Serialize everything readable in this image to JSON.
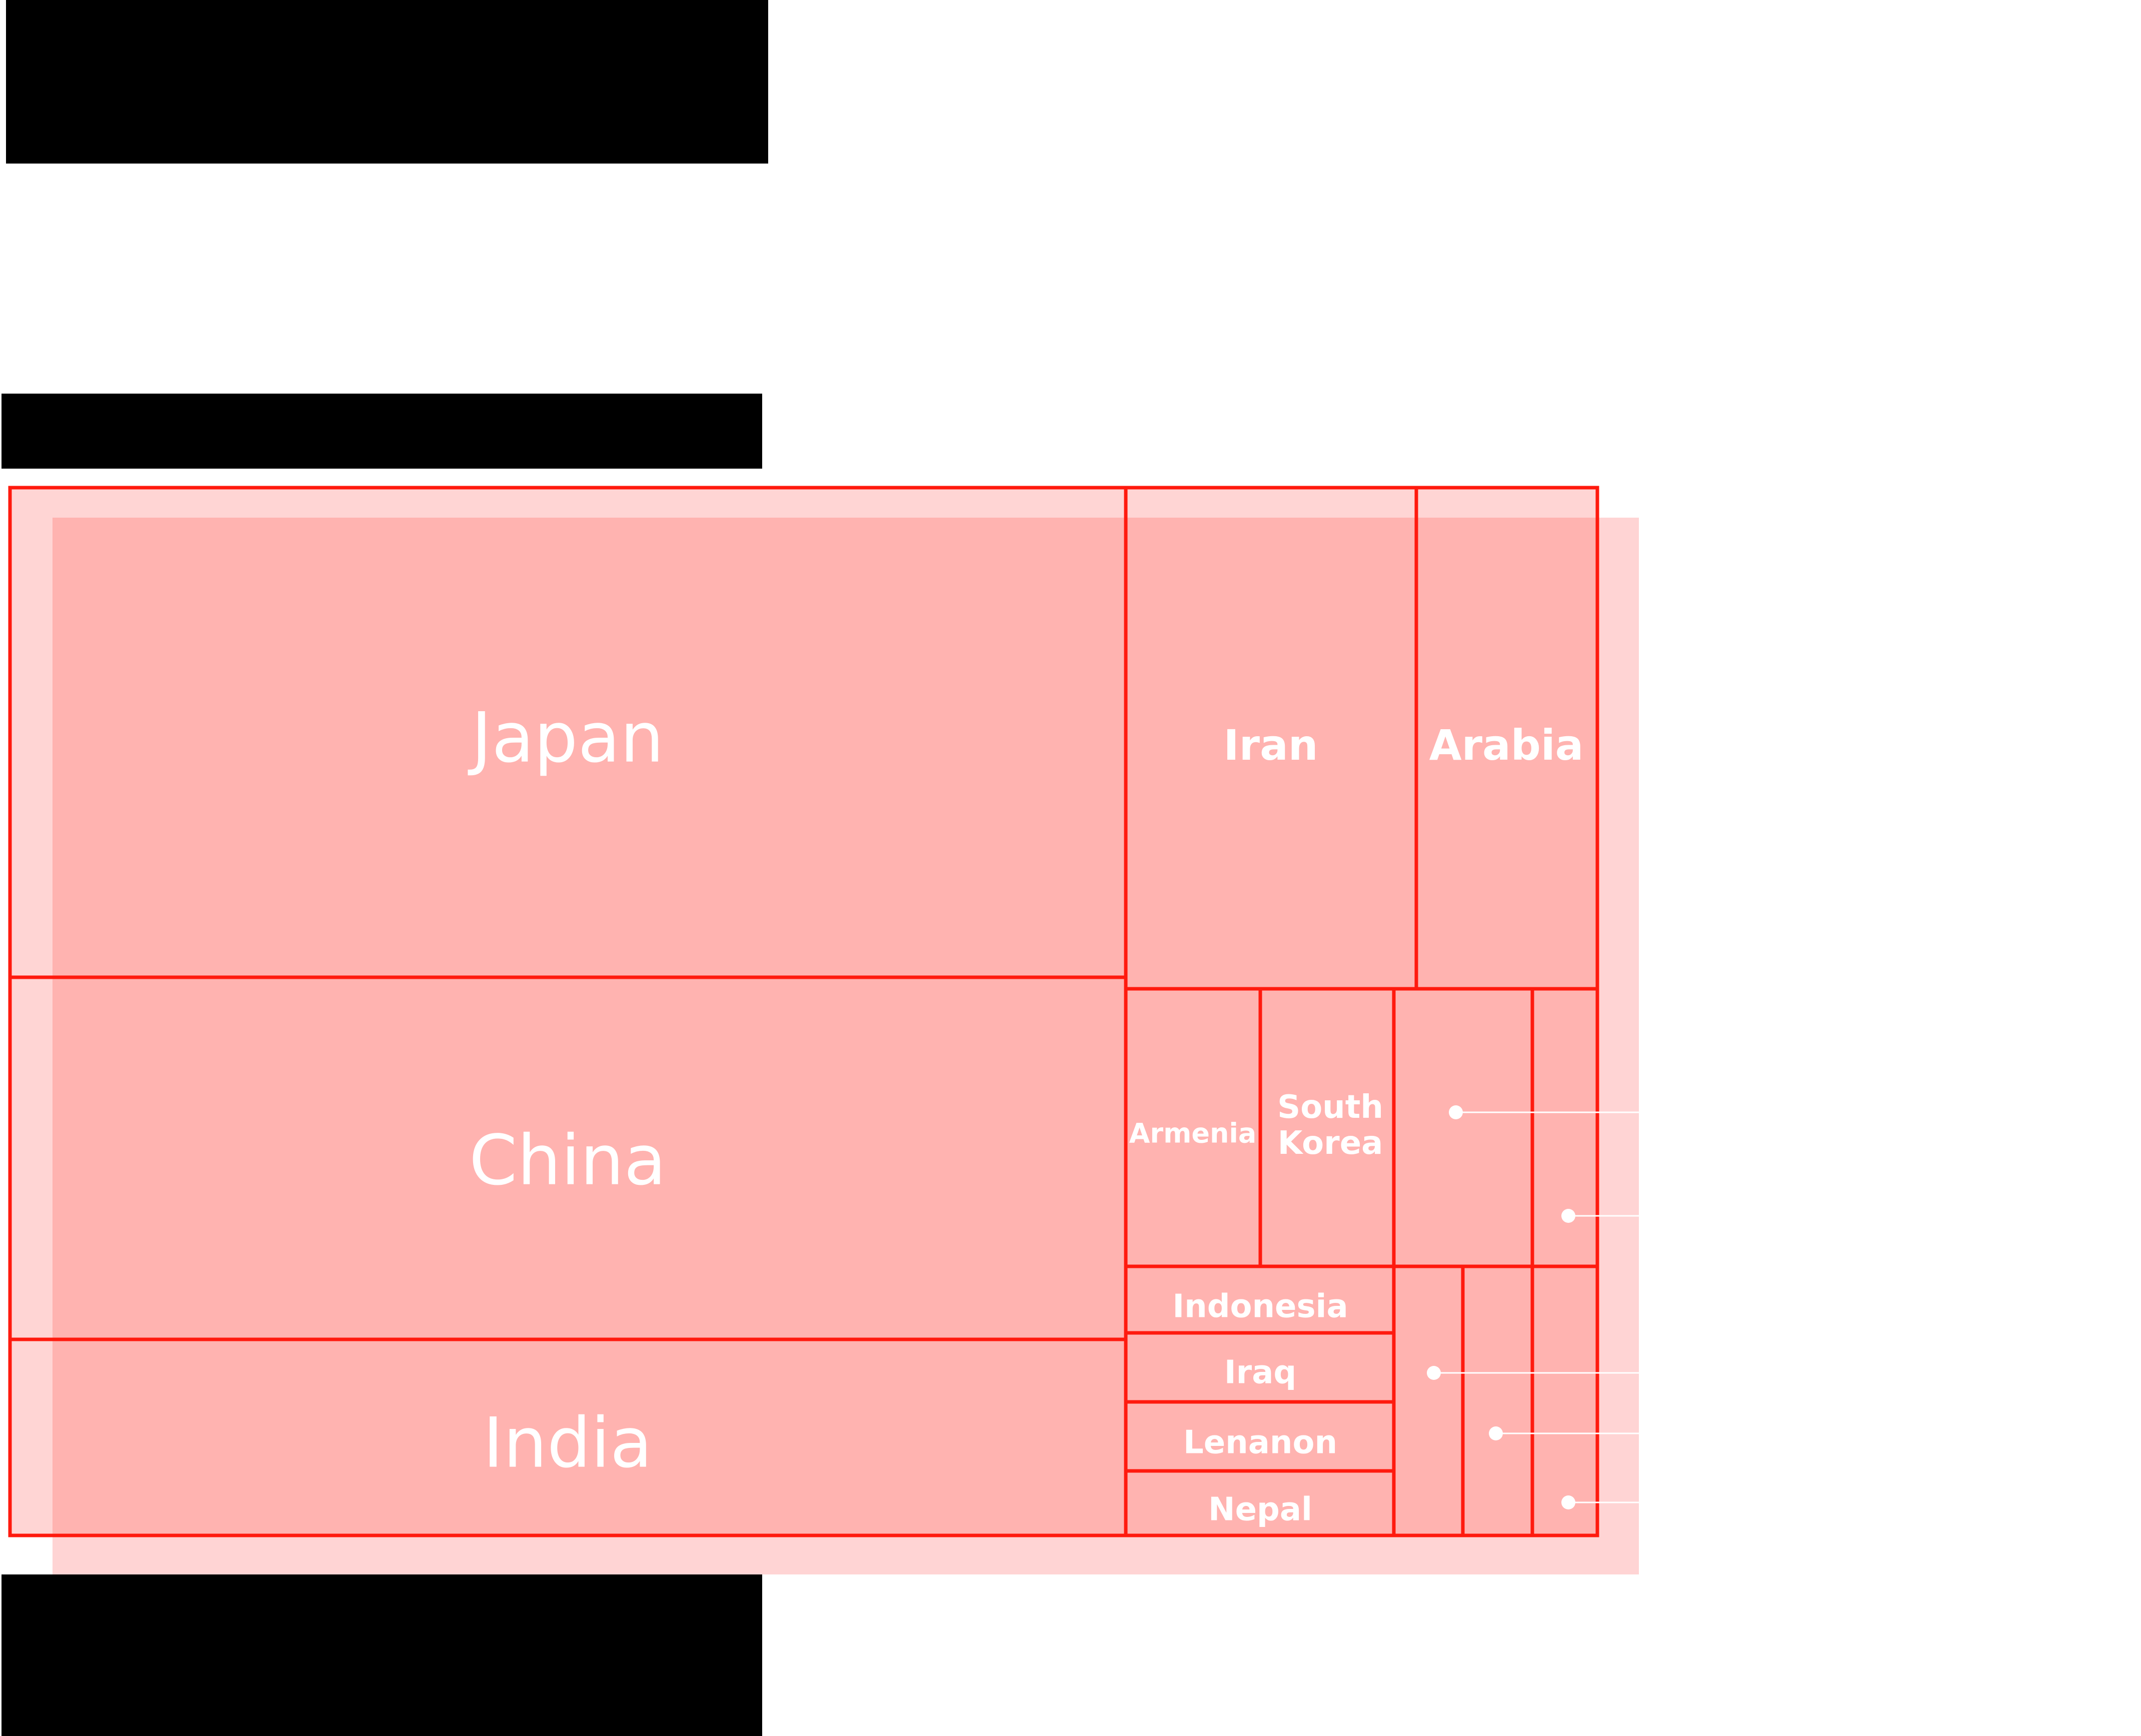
{
  "chart_data": {
    "type": "treemap",
    "title": "",
    "cells": [
      {
        "label": "Japan"
      },
      {
        "label": "China"
      },
      {
        "label": "India"
      },
      {
        "label": "Iran"
      },
      {
        "label": "Arabia"
      },
      {
        "label": "Armenia"
      },
      {
        "label": "South Korea",
        "lines": [
          "South",
          "Korea"
        ]
      },
      {
        "label": ""
      },
      {
        "label": ""
      },
      {
        "label": "Indonesia"
      },
      {
        "label": "Iraq"
      },
      {
        "label": "Lenanon"
      },
      {
        "label": "Nepal"
      },
      {
        "label": ""
      },
      {
        "label": ""
      },
      {
        "label": ""
      }
    ]
  },
  "colors": {
    "cell_fill": "#ffb3b0",
    "shadow_fill": "#ffd4d4",
    "border": "#ff1a0e",
    "label": "#ffffff",
    "redaction": "#000000"
  }
}
